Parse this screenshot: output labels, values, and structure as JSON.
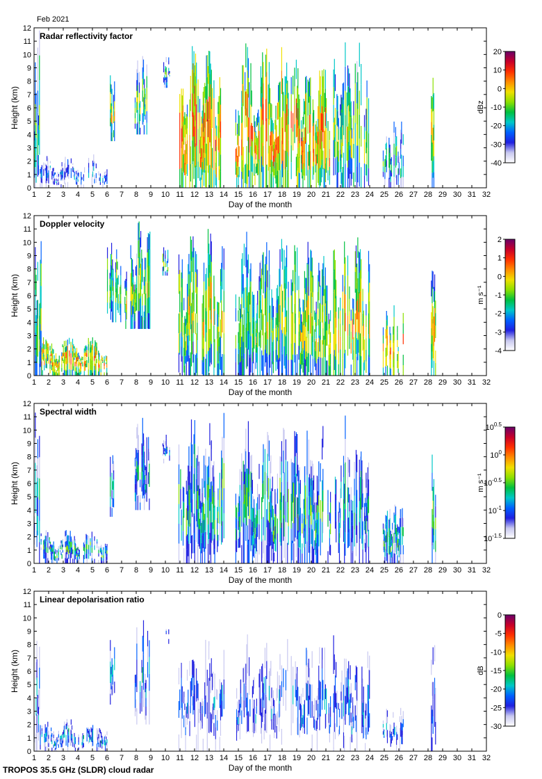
{
  "month_label": "Feb 2021",
  "footer": "TROPOS 35.5 GHz (SLDR) cloud radar",
  "chart_data": [
    {
      "type": "heatmap",
      "title": "Radar reflectivity factor",
      "xlabel": "Day of the month",
      "ylabel": "Height (km)",
      "xlim": [
        1,
        32
      ],
      "ylim": [
        0,
        12
      ],
      "x_ticks": [
        1,
        2,
        3,
        4,
        5,
        6,
        7,
        8,
        9,
        10,
        11,
        12,
        13,
        14,
        15,
        16,
        17,
        18,
        19,
        20,
        21,
        22,
        23,
        24,
        25,
        26,
        27,
        28,
        29,
        30,
        31,
        32
      ],
      "y_ticks": [
        0,
        1,
        2,
        3,
        4,
        5,
        6,
        7,
        8,
        9,
        10,
        11,
        12
      ],
      "colorbar": {
        "unit": "dBz",
        "ticks": [
          "20",
          "10",
          "0",
          "-10",
          "-20",
          "-30",
          "-40"
        ],
        "range": [
          -40,
          20
        ],
        "colors": [
          "#6a006a",
          "#c8002a",
          "#ff3000",
          "#ff8c00",
          "#f0e000",
          "#8ce000",
          "#00c040",
          "#00c8c8",
          "#0060ff",
          "#2020e0",
          "#c8c8f0",
          "#ffffff"
        ]
      },
      "cloud_segments": [
        {
          "day_start": 1.0,
          "day_end": 1.4,
          "base_km": 0.0,
          "top_km": 12.0,
          "level": 0.35
        },
        {
          "day_start": 1.4,
          "day_end": 6.0,
          "base_km": 0.0,
          "top_km": 2.6,
          "level": 0.15
        },
        {
          "day_start": 6.2,
          "day_end": 6.5,
          "base_km": 3.5,
          "top_km": 9.5,
          "level": 0.5
        },
        {
          "day_start": 7.9,
          "day_end": 8.9,
          "base_km": 4.0,
          "top_km": 10.5,
          "level": 0.4
        },
        {
          "day_start": 9.8,
          "day_end": 10.3,
          "base_km": 7.5,
          "top_km": 10.0,
          "level": 0.3
        },
        {
          "day_start": 10.9,
          "day_end": 14.0,
          "base_km": 0.0,
          "top_km": 11.5,
          "level": 0.65
        },
        {
          "day_start": 14.8,
          "day_end": 18.4,
          "base_km": 0.0,
          "top_km": 11.0,
          "level": 0.6
        },
        {
          "day_start": 18.6,
          "day_end": 21.3,
          "base_km": 0.0,
          "top_km": 10.5,
          "level": 0.6
        },
        {
          "day_start": 21.5,
          "day_end": 24.0,
          "base_km": 0.0,
          "top_km": 11.2,
          "level": 0.45
        },
        {
          "day_start": 24.9,
          "day_end": 26.3,
          "base_km": 0.0,
          "top_km": 5.5,
          "level": 0.3
        },
        {
          "day_start": 28.2,
          "day_end": 28.5,
          "base_km": 0.0,
          "top_km": 10.0,
          "level": 0.55
        }
      ]
    },
    {
      "type": "heatmap",
      "title": "Doppler velocity",
      "xlabel": "Day of the month",
      "ylabel": "Height (km)",
      "xlim": [
        1,
        32
      ],
      "ylim": [
        0,
        12
      ],
      "x_ticks": [
        1,
        2,
        3,
        4,
        5,
        6,
        7,
        8,
        9,
        10,
        11,
        12,
        13,
        14,
        15,
        16,
        17,
        18,
        19,
        20,
        21,
        22,
        23,
        24,
        25,
        26,
        27,
        28,
        29,
        30,
        31,
        32
      ],
      "y_ticks": [
        0,
        1,
        2,
        3,
        4,
        5,
        6,
        7,
        8,
        9,
        10,
        11,
        12
      ],
      "colorbar": {
        "unit": "m s⁻¹",
        "ticks": [
          "2",
          "1",
          "0",
          "-1",
          "-2",
          "-3",
          "-4"
        ],
        "range": [
          -4,
          2
        ],
        "colors": [
          "#6a006a",
          "#c8002a",
          "#ff3000",
          "#ff8c00",
          "#f0e000",
          "#8ce000",
          "#00c040",
          "#00c8c8",
          "#0060ff",
          "#2020e0",
          "#c8c8f0",
          "#ffffff"
        ]
      },
      "cloud_segments": [
        {
          "day_start": 1.0,
          "day_end": 1.5,
          "base_km": 0.0,
          "top_km": 12.0,
          "level": 0.45
        },
        {
          "day_start": 1.5,
          "day_end": 6.0,
          "base_km": 0.0,
          "top_km": 3.0,
          "level": 0.6
        },
        {
          "day_start": 6.0,
          "day_end": 7.0,
          "base_km": 4.0,
          "top_km": 10.0,
          "level": 0.45
        },
        {
          "day_start": 7.2,
          "day_end": 9.0,
          "base_km": 3.5,
          "top_km": 11.8,
          "level": 0.45
        },
        {
          "day_start": 9.8,
          "day_end": 10.3,
          "base_km": 7.5,
          "top_km": 10.0,
          "level": 0.4
        },
        {
          "day_start": 10.9,
          "day_end": 14.0,
          "base_km": 0.0,
          "top_km": 11.5,
          "level": 0.5
        },
        {
          "day_start": 14.8,
          "day_end": 18.4,
          "base_km": 0.0,
          "top_km": 11.0,
          "level": 0.45
        },
        {
          "day_start": 18.6,
          "day_end": 21.3,
          "base_km": 0.0,
          "top_km": 10.5,
          "level": 0.5
        },
        {
          "day_start": 21.5,
          "day_end": 24.0,
          "base_km": 0.0,
          "top_km": 11.2,
          "level": 0.55
        },
        {
          "day_start": 24.9,
          "day_end": 26.3,
          "base_km": 0.0,
          "top_km": 5.5,
          "level": 0.6
        },
        {
          "day_start": 28.2,
          "day_end": 28.5,
          "base_km": 0.0,
          "top_km": 10.0,
          "level": 0.55
        }
      ]
    },
    {
      "type": "heatmap",
      "title": "Spectral width",
      "xlabel": "Day of the month",
      "ylabel": "Height (km)",
      "xlim": [
        1,
        32
      ],
      "ylim": [
        0,
        12
      ],
      "x_ticks": [
        1,
        2,
        3,
        4,
        5,
        6,
        7,
        8,
        9,
        10,
        11,
        12,
        13,
        14,
        15,
        16,
        17,
        18,
        19,
        20,
        21,
        22,
        23,
        24,
        25,
        26,
        27,
        28,
        29,
        30,
        31,
        32
      ],
      "y_ticks": [
        0,
        1,
        2,
        3,
        4,
        5,
        6,
        7,
        8,
        9,
        10,
        11,
        12
      ],
      "colorbar": {
        "unit": "m s⁻¹",
        "scale": "log",
        "ticks": [
          "10^0.5",
          "10^0",
          "10^-0.5",
          "10^-1",
          "10^-1.5"
        ],
        "range": [
          -1.5,
          0.5
        ],
        "colors": [
          "#6a006a",
          "#c8002a",
          "#ff3000",
          "#ff8c00",
          "#f0e000",
          "#8ce000",
          "#00c040",
          "#00c8c8",
          "#0060ff",
          "#2020e0",
          "#c8c8f0",
          "#ffffff"
        ]
      },
      "cloud_segments": [
        {
          "day_start": 1.0,
          "day_end": 1.4,
          "base_km": 0.0,
          "top_km": 12.0,
          "level": 0.25
        },
        {
          "day_start": 1.4,
          "day_end": 6.0,
          "base_km": 0.0,
          "top_km": 2.6,
          "level": 0.3
        },
        {
          "day_start": 6.2,
          "day_end": 6.5,
          "base_km": 3.5,
          "top_km": 9.5,
          "level": 0.25
        },
        {
          "day_start": 7.9,
          "day_end": 8.9,
          "base_km": 4.0,
          "top_km": 11.5,
          "level": 0.25
        },
        {
          "day_start": 9.8,
          "day_end": 10.3,
          "base_km": 7.5,
          "top_km": 10.0,
          "level": 0.22
        },
        {
          "day_start": 10.9,
          "day_end": 14.0,
          "base_km": 0.0,
          "top_km": 11.5,
          "level": 0.3
        },
        {
          "day_start": 14.8,
          "day_end": 18.4,
          "base_km": 0.0,
          "top_km": 11.0,
          "level": 0.3
        },
        {
          "day_start": 18.6,
          "day_end": 21.3,
          "base_km": 0.0,
          "top_km": 10.5,
          "level": 0.3
        },
        {
          "day_start": 21.5,
          "day_end": 24.0,
          "base_km": 0.0,
          "top_km": 11.2,
          "level": 0.25
        },
        {
          "day_start": 24.9,
          "day_end": 26.3,
          "base_km": 0.0,
          "top_km": 5.5,
          "level": 0.3
        },
        {
          "day_start": 28.2,
          "day_end": 28.5,
          "base_km": 0.0,
          "top_km": 10.0,
          "level": 0.35
        }
      ]
    },
    {
      "type": "heatmap",
      "title": "Linear depolarisation ratio",
      "xlabel": "Day of the month",
      "ylabel": "Height (km)",
      "xlim": [
        1,
        32
      ],
      "ylim": [
        0,
        12
      ],
      "x_ticks": [
        1,
        2,
        3,
        4,
        5,
        6,
        7,
        8,
        9,
        10,
        11,
        12,
        13,
        14,
        15,
        16,
        17,
        18,
        19,
        20,
        21,
        22,
        23,
        24,
        25,
        26,
        27,
        28,
        29,
        30,
        31,
        32
      ],
      "y_ticks": [
        0,
        1,
        2,
        3,
        4,
        5,
        6,
        7,
        8,
        9,
        10,
        11,
        12
      ],
      "colorbar": {
        "unit": "dB",
        "ticks": [
          "0",
          "-5",
          "-10",
          "-15",
          "-20",
          "-25",
          "-30"
        ],
        "range": [
          -30,
          0
        ],
        "colors": [
          "#6a006a",
          "#c8002a",
          "#ff3000",
          "#ff8c00",
          "#f0e000",
          "#8ce000",
          "#00c040",
          "#00c8c8",
          "#0060ff",
          "#2020e0",
          "#c8c8f0",
          "#ffffff"
        ]
      },
      "cloud_segments": [
        {
          "day_start": 1.0,
          "day_end": 1.4,
          "base_km": 0.0,
          "top_km": 11.0,
          "level": 0.15
        },
        {
          "day_start": 1.4,
          "day_end": 6.0,
          "base_km": 0.0,
          "top_km": 2.6,
          "level": 0.18
        },
        {
          "day_start": 6.2,
          "day_end": 6.5,
          "base_km": 3.5,
          "top_km": 9.5,
          "level": 0.18
        },
        {
          "day_start": 7.9,
          "day_end": 8.9,
          "base_km": 2.0,
          "top_km": 11.0,
          "level": 0.2
        },
        {
          "day_start": 9.8,
          "day_end": 10.3,
          "base_km": 7.5,
          "top_km": 10.0,
          "level": 0.18
        },
        {
          "day_start": 10.9,
          "day_end": 14.0,
          "base_km": 0.0,
          "top_km": 10.0,
          "level": 0.1
        },
        {
          "day_start": 14.8,
          "day_end": 18.4,
          "base_km": 0.0,
          "top_km": 10.0,
          "level": 0.1
        },
        {
          "day_start": 18.6,
          "day_end": 21.3,
          "base_km": 0.0,
          "top_km": 10.0,
          "level": 0.12
        },
        {
          "day_start": 21.5,
          "day_end": 24.0,
          "base_km": 0.0,
          "top_km": 9.5,
          "level": 0.15
        },
        {
          "day_start": 24.9,
          "day_end": 26.3,
          "base_km": 0.0,
          "top_km": 4.0,
          "level": 0.15
        },
        {
          "day_start": 28.2,
          "day_end": 28.5,
          "base_km": 0.0,
          "top_km": 9.5,
          "level": 0.2
        }
      ]
    }
  ]
}
